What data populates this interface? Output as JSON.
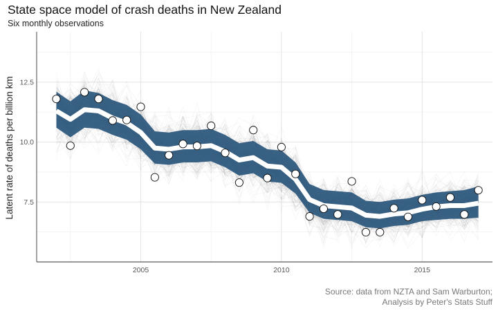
{
  "chart_data": {
    "type": "line",
    "title": "State space model of crash deaths in New Zealand",
    "subtitle": "Six monthly observations",
    "xlabel": "",
    "ylabel": "Latent rate of deaths per billion km",
    "xlim": [
      2001.3,
      2017.5
    ],
    "ylim": [
      5.0,
      14.6
    ],
    "x_ticks": [
      2005,
      2010,
      2015
    ],
    "x_tick_labels": [
      "2005",
      "2010",
      "2015"
    ],
    "y_ticks": [
      7.5,
      10.0,
      12.5
    ],
    "y_tick_labels": [
      "7.5",
      "10.0",
      "12.5"
    ],
    "grid": true,
    "x": [
      2002.0,
      2002.5,
      2003.0,
      2003.5,
      2004.0,
      2004.5,
      2005.0,
      2005.5,
      2006.0,
      2006.5,
      2007.0,
      2007.5,
      2008.0,
      2008.5,
      2009.0,
      2009.5,
      2010.0,
      2010.5,
      2011.0,
      2011.5,
      2012.0,
      2012.5,
      2013.0,
      2013.5,
      2014.0,
      2014.5,
      2015.0,
      2015.5,
      2016.0,
      2016.5,
      2017.0
    ],
    "series": [
      {
        "values": [
          11.8,
          9.85,
          12.08,
          11.8,
          10.9,
          10.92,
          11.47,
          8.53,
          9.45,
          9.92,
          9.84,
          10.68,
          9.55,
          8.31,
          10.5,
          8.5,
          9.79,
          8.67,
          6.9,
          7.22,
          6.98,
          8.36,
          6.24,
          6.24,
          7.24,
          6.88,
          7.58,
          7.31,
          7.69,
          6.98,
          7.99
        ]
      },
      {
        "values": [
          11.3,
          10.95,
          11.35,
          11.3,
          11.0,
          10.8,
          10.4,
          9.75,
          9.7,
          9.8,
          9.8,
          9.85,
          9.6,
          9.25,
          9.35,
          9.0,
          8.95,
          8.45,
          7.6,
          7.35,
          7.3,
          7.25,
          6.95,
          6.9,
          7.0,
          7.05,
          7.2,
          7.3,
          7.35,
          7.35,
          7.45
        ]
      }
    ],
    "band": {
      "lower": [
        10.6,
        10.2,
        10.6,
        10.55,
        10.3,
        10.1,
        9.7,
        9.1,
        9.05,
        9.15,
        9.15,
        9.2,
        8.95,
        8.6,
        8.7,
        8.35,
        8.3,
        7.85,
        7.05,
        6.8,
        6.75,
        6.7,
        6.45,
        6.4,
        6.5,
        6.55,
        6.7,
        6.75,
        6.8,
        6.8,
        6.85
      ],
      "upper": [
        12.1,
        11.7,
        12.15,
        12.05,
        11.75,
        11.55,
        11.15,
        10.45,
        10.4,
        10.5,
        10.5,
        10.55,
        10.3,
        9.95,
        10.05,
        9.7,
        9.65,
        9.15,
        8.25,
        8.0,
        7.95,
        7.9,
        7.55,
        7.5,
        7.6,
        7.65,
        7.8,
        7.9,
        7.95,
        8.0,
        8.15
      ]
    },
    "colors": {
      "band": "#2e5a7e",
      "mean": "#ffffff",
      "points_fill": "#ffffff",
      "points_stroke": "#111111",
      "simulations": "#000000"
    }
  },
  "caption": {
    "line1": "Source: data from NZTA and Sam Warburton;",
    "line2": "Analysis by Peter's Stats Stuff"
  }
}
